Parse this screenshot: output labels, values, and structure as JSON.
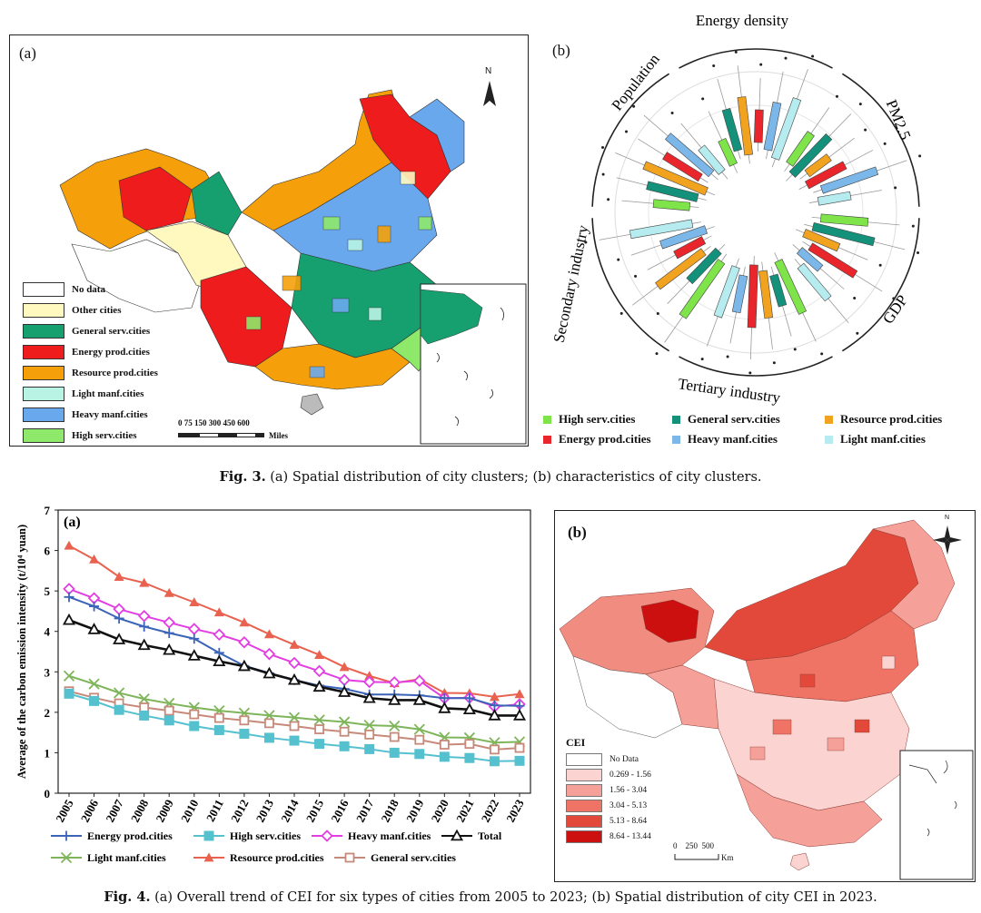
{
  "fig3": {
    "panel_a_label": "(a)",
    "north_label": "N",
    "legend": [
      {
        "label": "No data",
        "color": "#ffffff"
      },
      {
        "label": "Other cities",
        "color": "#fff8bf"
      },
      {
        "label": "General serv.cities",
        "color": "#16a06f"
      },
      {
        "label": "Energy prod.cities",
        "color": "#ee1c1c"
      },
      {
        "label": "Resource prod.cities",
        "color": "#f5a00a"
      },
      {
        "label": "Light manf.cities",
        "color": "#b8f3e4"
      },
      {
        "label": "Heavy manf.cities",
        "color": "#6aa8ee"
      },
      {
        "label": "High serv.cities",
        "color": "#8ee86a"
      }
    ],
    "scale_ticks": "0 75 150 300 450 600",
    "scale_unit": "Miles",
    "panel_b_label": "(b)",
    "radial_labels": [
      "Energy density",
      "PM2.5",
      "GDP",
      "Tertiary industry",
      "Secondary industry",
      "Population"
    ],
    "legend_b": [
      {
        "label": "High serv.cities",
        "color": "#7fe34a"
      },
      {
        "label": "General serv.cities",
        "color": "#14917a"
      },
      {
        "label": "Resource prod.cities",
        "color": "#f1a21e"
      },
      {
        "label": "Energy prod.cities",
        "color": "#e8262b"
      },
      {
        "label": "Heavy manf.cities",
        "color": "#7bb7e8"
      },
      {
        "label": "Light manf.cities",
        "color": "#b6ecef"
      }
    ],
    "caption_prefix": "Fig. 3.",
    "caption_text": "(a) Spatial distribution of city clusters; (b) characteristics of city clusters."
  },
  "fig4": {
    "panel_a_label": "(a)",
    "panel_b_label": "(b)",
    "cei_legend_title": "CEI",
    "cei_legend": [
      {
        "label": "No Data",
        "color": "#ffffff"
      },
      {
        "label": "0.269 - 1.56",
        "color": "#fbd3d1"
      },
      {
        "label": "1.56 - 3.04",
        "color": "#f5a19a"
      },
      {
        "label": "3.04 - 5.13",
        "color": "#ef7465"
      },
      {
        "label": "5.13 - 8.64",
        "color": "#e2493a"
      },
      {
        "label": "8.64 - 13.44",
        "color": "#cc1010"
      }
    ],
    "scale_ticks": "0    250  500",
    "scale_unit": "Km",
    "north_label": "N",
    "caption_prefix": "Fig. 4.",
    "caption_text": "(a) Overall trend of CEI for six types of cities from 2005 to 2023; (b) Spatial distribution of city CEI in 2023."
  },
  "chart_data": {
    "type": "line",
    "panel": "(a)",
    "title": "",
    "xlabel": "",
    "ylabel": "Average of the carbon emission intensity (t/10⁴ yuan)",
    "ylim": [
      0,
      7
    ],
    "yticks": [
      "0",
      "1",
      "2",
      "3",
      "4",
      "5",
      "6",
      "7"
    ],
    "categories": [
      "2005",
      "2006",
      "2007",
      "2008",
      "2009",
      "2010",
      "2011",
      "2012",
      "2013",
      "2014",
      "2015",
      "2016",
      "2017",
      "2018",
      "2019",
      "2020",
      "2021",
      "2022",
      "2023"
    ],
    "series": [
      {
        "name": "Resource prod.cities",
        "color": "#e8624f",
        "marker": "triangle",
        "values": [
          6.12,
          5.78,
          5.35,
          5.2,
          4.95,
          4.72,
          4.47,
          4.22,
          3.93,
          3.67,
          3.42,
          3.12,
          2.9,
          2.72,
          2.82,
          2.48,
          2.47,
          2.38,
          2.45
        ]
      },
      {
        "name": "Heavy manf.cities",
        "color": "#e23ee2",
        "marker": "diamond",
        "values": [
          5.05,
          4.82,
          4.55,
          4.38,
          4.22,
          4.06,
          3.92,
          3.73,
          3.44,
          3.22,
          3.02,
          2.8,
          2.75,
          2.74,
          2.78,
          2.35,
          2.36,
          2.14,
          2.2
        ]
      },
      {
        "name": "Energy prod.cities",
        "color": "#3b64b8",
        "marker": "plus",
        "values": [
          4.85,
          4.62,
          4.32,
          4.12,
          3.96,
          3.82,
          3.47,
          3.15,
          2.97,
          2.8,
          2.66,
          2.58,
          2.44,
          2.44,
          2.42,
          2.35,
          2.35,
          2.17,
          2.16
        ]
      },
      {
        "name": "Total",
        "color": "#111111",
        "marker": "triangle-open",
        "values": [
          4.28,
          4.05,
          3.8,
          3.66,
          3.54,
          3.4,
          3.26,
          3.14,
          2.96,
          2.8,
          2.63,
          2.5,
          2.35,
          2.3,
          2.3,
          2.1,
          2.07,
          1.92,
          1.92
        ]
      },
      {
        "name": "Light manf.cities",
        "color": "#7fb55a",
        "marker": "x",
        "values": [
          2.9,
          2.7,
          2.48,
          2.33,
          2.22,
          2.12,
          2.04,
          1.98,
          1.92,
          1.87,
          1.81,
          1.76,
          1.68,
          1.66,
          1.58,
          1.38,
          1.37,
          1.25,
          1.27
        ]
      },
      {
        "name": "General serv.cities",
        "color": "#c78a7a",
        "marker": "square-open",
        "values": [
          2.52,
          2.36,
          2.22,
          2.12,
          2.04,
          1.95,
          1.86,
          1.8,
          1.73,
          1.66,
          1.58,
          1.52,
          1.45,
          1.39,
          1.32,
          1.2,
          1.22,
          1.08,
          1.12
        ]
      },
      {
        "name": "High serv.cities",
        "color": "#55c1cf",
        "marker": "square",
        "values": [
          2.46,
          2.28,
          2.06,
          1.92,
          1.8,
          1.66,
          1.56,
          1.47,
          1.37,
          1.3,
          1.22,
          1.16,
          1.09,
          1.0,
          0.97,
          0.9,
          0.87,
          0.79,
          0.8
        ]
      }
    ],
    "legend_order": [
      "Energy prod.cities",
      "High serv.cities",
      "Heavy manf.cities",
      "Total",
      "Light manf.cities",
      "Resource prod.cities",
      "General serv.cities"
    ],
    "legend_position": "bottom"
  }
}
